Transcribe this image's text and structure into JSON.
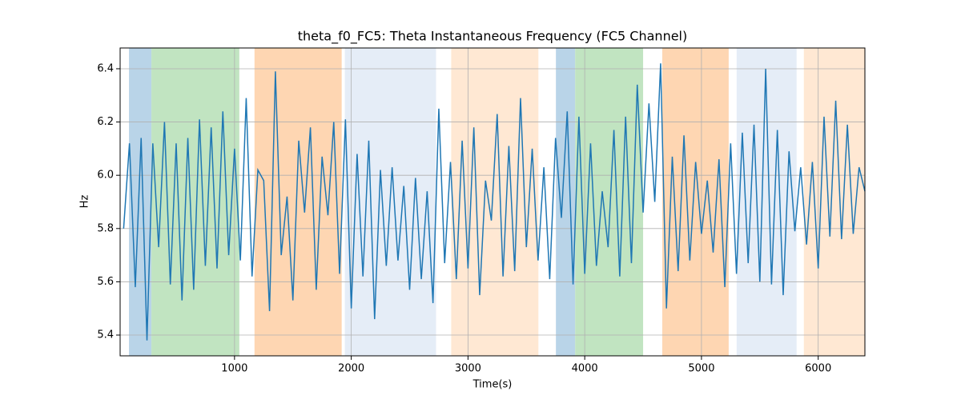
{
  "chart_data": {
    "type": "line",
    "title": "theta_f0_FC5: Theta Instantaneous Frequency (FC5 Channel)",
    "x_label": "Time(s)",
    "y_label": "Hz",
    "x": [
      50,
      100,
      150,
      200,
      250,
      300,
      350,
      400,
      450,
      500,
      550,
      600,
      650,
      700,
      750,
      800,
      850,
      900,
      950,
      1000,
      1050,
      1100,
      1150,
      1200,
      1250,
      1300,
      1350,
      1400,
      1450,
      1500,
      1550,
      1600,
      1650,
      1700,
      1750,
      1800,
      1850,
      1900,
      1950,
      2000,
      2050,
      2100,
      2150,
      2200,
      2250,
      2300,
      2350,
      2400,
      2450,
      2500,
      2550,
      2600,
      2650,
      2700,
      2750,
      2800,
      2850,
      2900,
      2950,
      3000,
      3050,
      3100,
      3150,
      3200,
      3250,
      3300,
      3350,
      3400,
      3450,
      3500,
      3550,
      3600,
      3650,
      3700,
      3750,
      3800,
      3850,
      3900,
      3950,
      4000,
      4050,
      4100,
      4150,
      4200,
      4250,
      4300,
      4350,
      4400,
      4450,
      4500,
      4550,
      4600,
      4650,
      4700,
      4750,
      4800,
      4850,
      4900,
      4950,
      5000,
      5050,
      5100,
      5150,
      5200,
      5250,
      5300,
      5350,
      5400,
      5450,
      5500,
      5550,
      5600,
      5650,
      5700,
      5750,
      5800,
      5850,
      5900,
      5950,
      6000,
      6050,
      6100,
      6150,
      6200,
      6250,
      6300,
      6350,
      6400
    ],
    "series": [
      {
        "name": "theta_f0_FC5",
        "color": "#1f77b4",
        "values": [
          5.8,
          6.12,
          5.58,
          6.14,
          5.38,
          6.12,
          5.73,
          6.2,
          5.59,
          6.12,
          5.53,
          6.14,
          5.57,
          6.21,
          5.66,
          6.18,
          5.65,
          6.24,
          5.7,
          6.1,
          5.68,
          6.29,
          5.62,
          6.02,
          5.98,
          5.49,
          6.39,
          5.7,
          5.92,
          5.53,
          6.13,
          5.86,
          6.18,
          5.57,
          6.07,
          5.85,
          6.2,
          5.63,
          6.21,
          5.5,
          6.08,
          5.62,
          6.13,
          5.46,
          6.02,
          5.66,
          6.03,
          5.68,
          5.96,
          5.57,
          5.99,
          5.61,
          5.94,
          5.52,
          6.25,
          5.67,
          6.05,
          5.61,
          6.13,
          5.65,
          6.18,
          5.55,
          5.98,
          5.83,
          6.23,
          5.62,
          6.11,
          5.64,
          6.29,
          5.73,
          6.1,
          5.68,
          6.03,
          5.61,
          6.14,
          5.84,
          6.24,
          5.59,
          6.22,
          5.63,
          6.12,
          5.66,
          5.94,
          5.73,
          6.17,
          5.62,
          6.22,
          5.67,
          6.34,
          5.86,
          6.27,
          5.9,
          6.42,
          5.5,
          6.07,
          5.64,
          6.15,
          5.68,
          6.05,
          5.78,
          5.98,
          5.71,
          6.06,
          5.58,
          6.12,
          5.63,
          6.16,
          5.67,
          6.19,
          5.6,
          6.4,
          5.59,
          6.17,
          5.55,
          6.09,
          5.79,
          6.03,
          5.74,
          6.05,
          5.65,
          6.22,
          5.77,
          6.28,
          5.76,
          6.19,
          5.78,
          6.03,
          5.94
        ]
      }
    ],
    "regions": [
      {
        "x0": 96,
        "x1": 288,
        "color": "#b9d4e8"
      },
      {
        "x0": 288,
        "x1": 1041,
        "color": "#c1e4c1"
      },
      {
        "x0": 1171,
        "x1": 1918,
        "color": "#fed6b2"
      },
      {
        "x0": 1945,
        "x1": 2726,
        "color": "#e5edf7"
      },
      {
        "x0": 2856,
        "x1": 3603,
        "color": "#ffe8d3"
      },
      {
        "x0": 3753,
        "x1": 3918,
        "color": "#b9d4e8"
      },
      {
        "x0": 3918,
        "x1": 4500,
        "color": "#c1e4c1"
      },
      {
        "x0": 4664,
        "x1": 5233,
        "color": "#fed6b2"
      },
      {
        "x0": 5301,
        "x1": 5815,
        "color": "#e5edf7"
      },
      {
        "x0": 5877,
        "x1": 6400,
        "color": "#ffe8d3"
      }
    ],
    "xlim": [
      20,
      6400
    ],
    "ylim": [
      5.322,
      6.478
    ],
    "xticks": [
      1000,
      2000,
      3000,
      4000,
      5000,
      6000
    ],
    "yticks": [
      5.4,
      5.6,
      5.8,
      {
        "value": 6,
        "label": "6.0"
      },
      6.2,
      6.4
    ],
    "grid": true
  }
}
